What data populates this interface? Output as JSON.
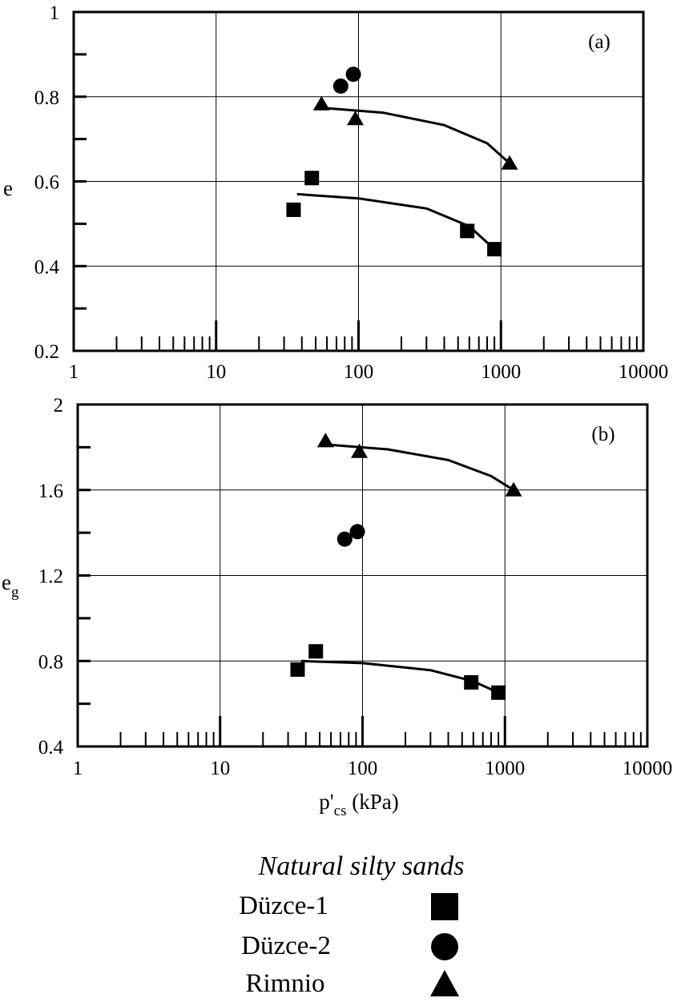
{
  "chart_data": [
    {
      "type": "scatter",
      "panel_label": "(a)",
      "ylabel": "e",
      "xlabel": "",
      "xscale": "log",
      "xlim": [
        1,
        10000
      ],
      "ylim": [
        0.2,
        1
      ],
      "grid": true,
      "xtick_labels": [
        "1",
        "10",
        "100",
        "1000",
        "10000"
      ],
      "ytick_labels": [
        "0.2",
        "0.4",
        "0.6",
        "0.8",
        "1"
      ],
      "yticks": [
        0.2,
        0.4,
        0.6,
        0.8,
        1
      ],
      "series": [
        {
          "name": "Düzce-1",
          "marker": "square",
          "points": [
            [
              35,
              0.533
            ],
            [
              47,
              0.608
            ],
            [
              580,
              0.483
            ],
            [
              900,
              0.44
            ]
          ],
          "fit": [
            [
              37,
              0.57
            ],
            [
              100,
              0.56
            ],
            [
              300,
              0.536
            ],
            [
              600,
              0.494
            ],
            [
              900,
              0.44
            ]
          ]
        },
        {
          "name": "Düzce-2",
          "marker": "circle",
          "points": [
            [
              75,
              0.825
            ],
            [
              92,
              0.853
            ]
          ]
        },
        {
          "name": "Rimnio",
          "marker": "triangle",
          "points": [
            [
              55,
              0.783
            ],
            [
              95,
              0.748
            ],
            [
              1150,
              0.643
            ]
          ],
          "fit": [
            [
              50,
              0.775
            ],
            [
              150,
              0.762
            ],
            [
              400,
              0.733
            ],
            [
              800,
              0.69
            ],
            [
              1150,
              0.643
            ]
          ]
        }
      ]
    },
    {
      "type": "scatter",
      "panel_label": "(b)",
      "ylabel": "e",
      "ylabel_sub": "g",
      "xlabel": "p'",
      "xlabel_sub": "cs",
      "xlabel_suffix": " (kPa)",
      "xscale": "log",
      "xlim": [
        1,
        10000
      ],
      "ylim": [
        0.4,
        2
      ],
      "grid": true,
      "xtick_labels": [
        "1",
        "10",
        "100",
        "1000",
        "10000"
      ],
      "ytick_labels": [
        "0.4",
        "0.8",
        "1.2",
        "1.6",
        "2"
      ],
      "yticks": [
        0.4,
        0.8,
        1.2,
        1.6,
        2
      ],
      "series": [
        {
          "name": "Düzce-1",
          "marker": "square",
          "points": [
            [
              35,
              0.76
            ],
            [
              47,
              0.845
            ],
            [
              580,
              0.7
            ],
            [
              900,
              0.652
            ]
          ],
          "fit": [
            [
              37,
              0.8
            ],
            [
              100,
              0.79
            ],
            [
              300,
              0.757
            ],
            [
              600,
              0.705
            ],
            [
              900,
              0.652
            ]
          ]
        },
        {
          "name": "Düzce-2",
          "marker": "circle",
          "points": [
            [
              75,
              1.37
            ],
            [
              92,
              1.405
            ]
          ]
        },
        {
          "name": "Rimnio",
          "marker": "triangle",
          "points": [
            [
              55,
              1.83
            ],
            [
              95,
              1.78
            ],
            [
              1150,
              1.6
            ]
          ],
          "fit": [
            [
              50,
              1.815
            ],
            [
              150,
              1.79
            ],
            [
              400,
              1.74
            ],
            [
              800,
              1.665
            ],
            [
              1150,
              1.6
            ]
          ]
        }
      ]
    }
  ],
  "legend": {
    "title": "Natural silty sands",
    "items": [
      {
        "label": "Düzce-1",
        "marker": "square"
      },
      {
        "label": "Düzce-2",
        "marker": "circle"
      },
      {
        "label": "Rimnio",
        "marker": "triangle"
      }
    ]
  }
}
